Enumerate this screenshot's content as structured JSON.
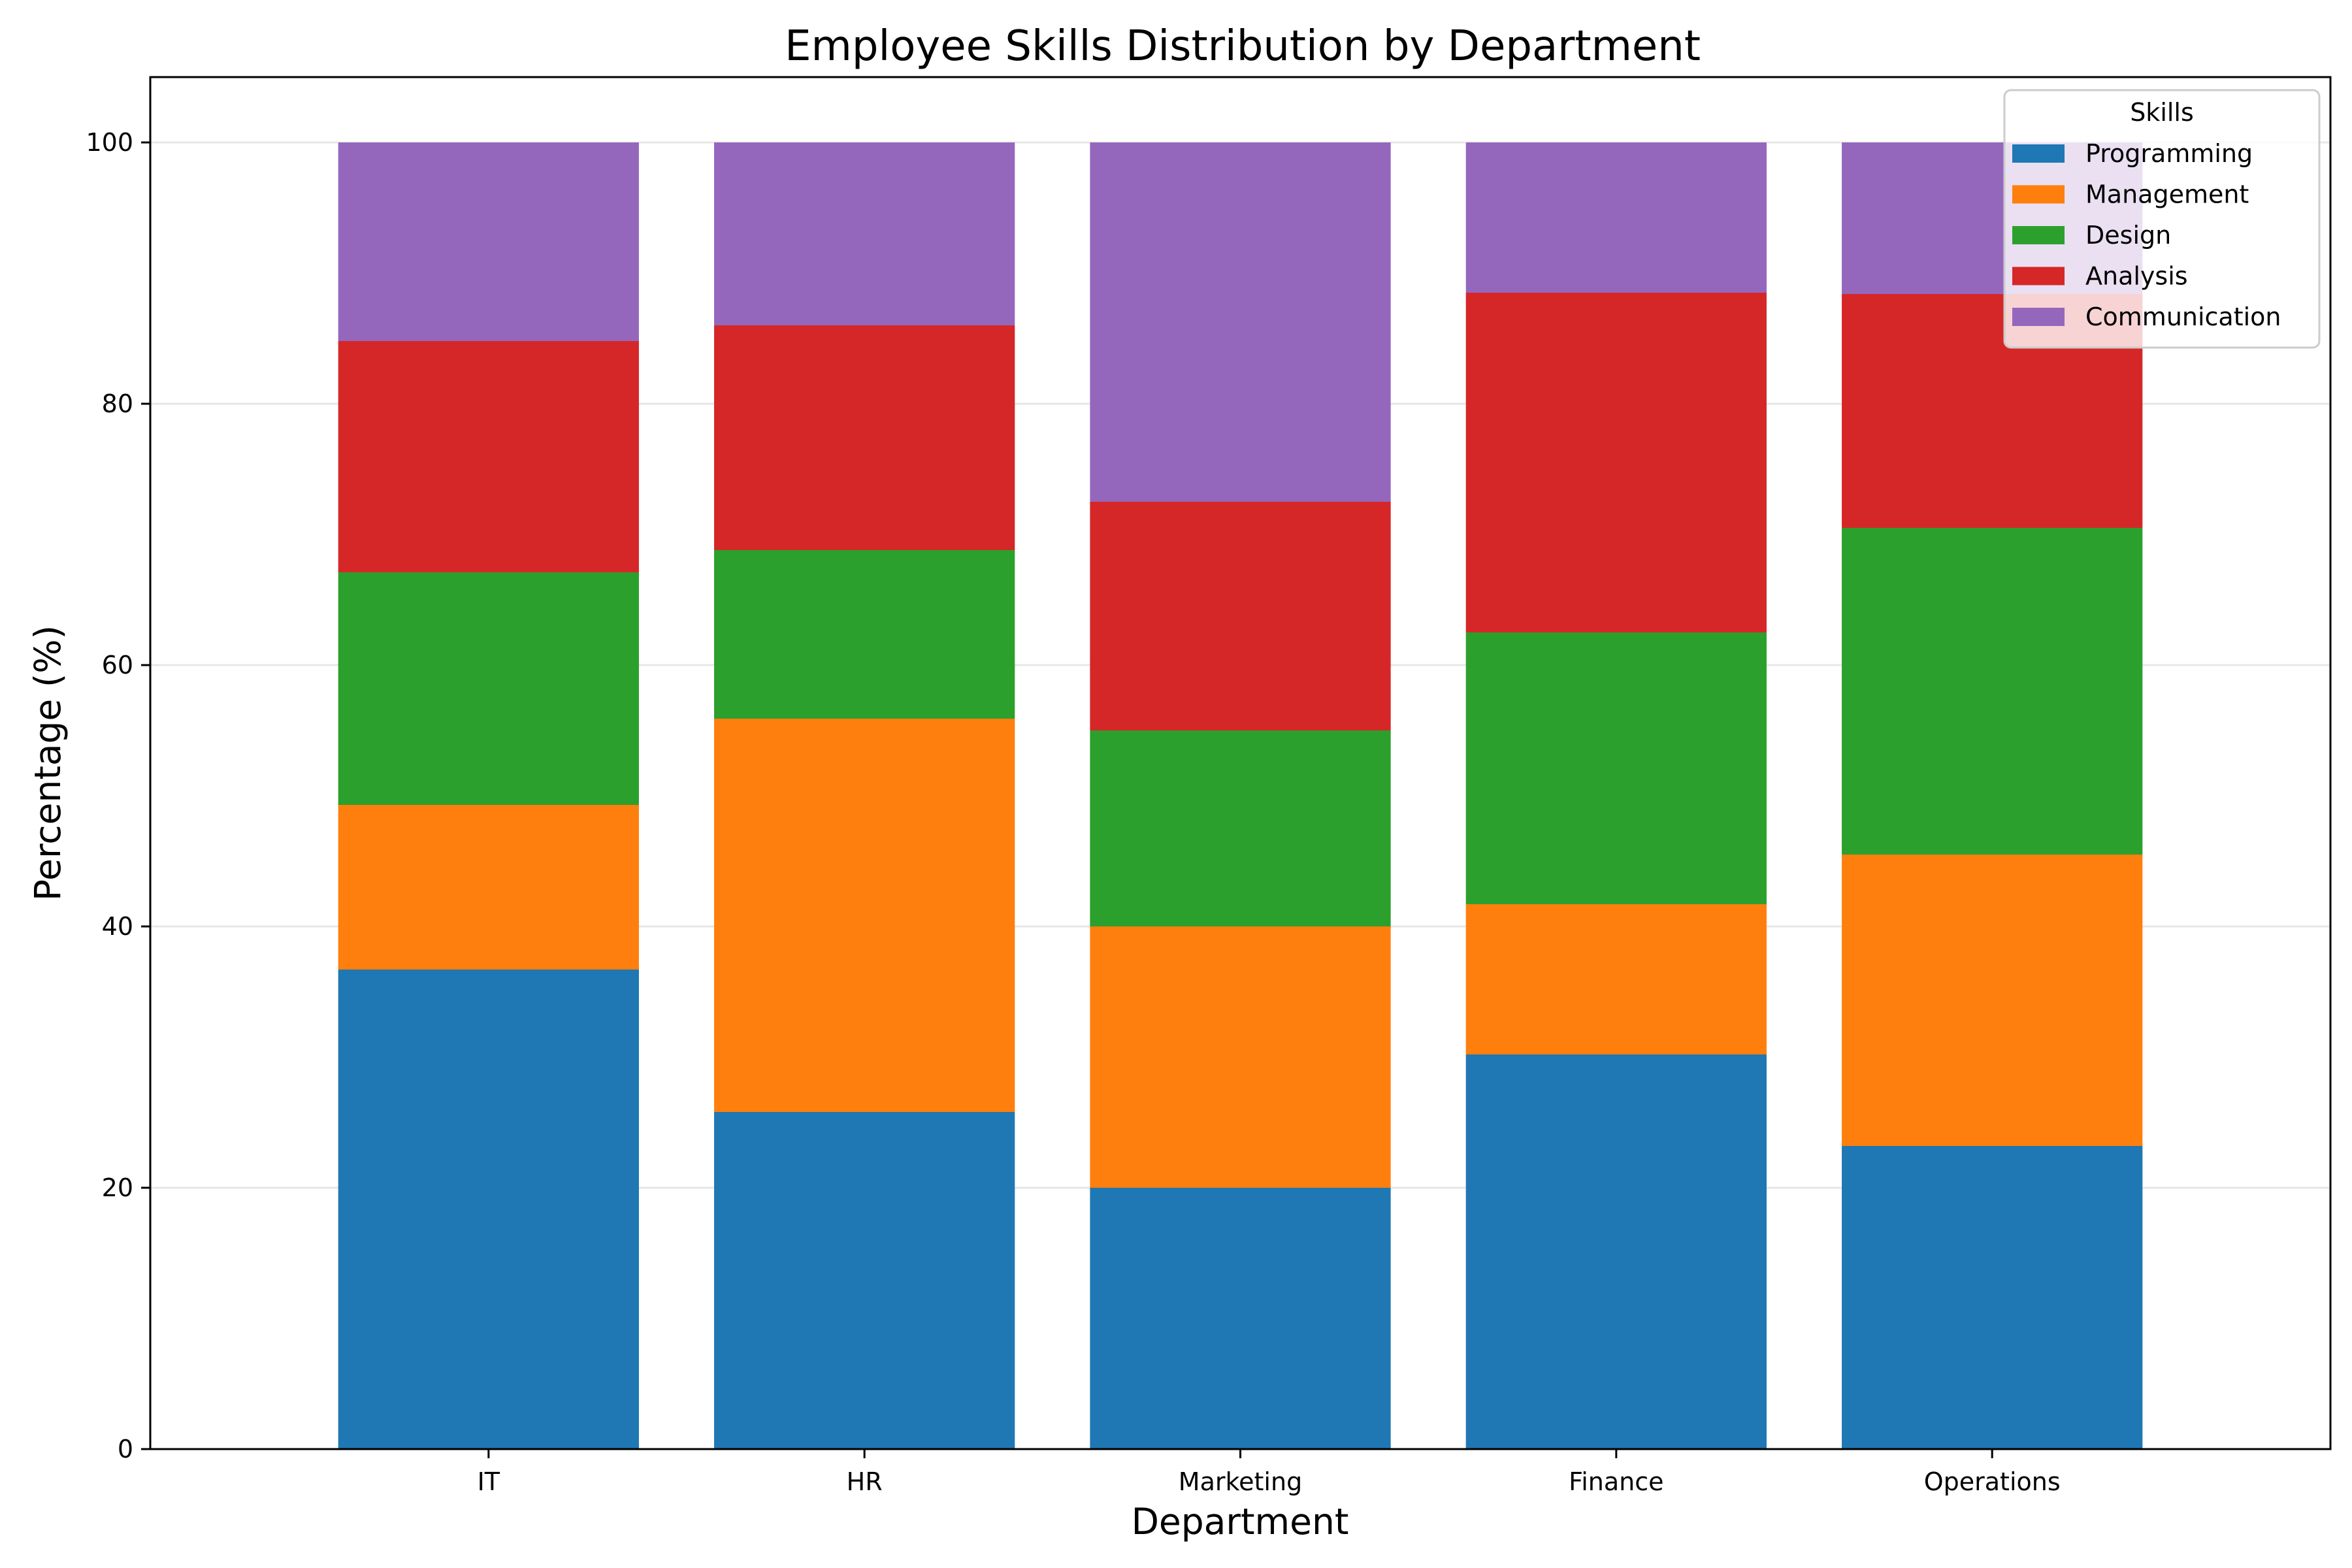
{
  "chart_data": {
    "type": "bar",
    "stacked": true,
    "title": "Employee Skills Distribution by Department",
    "xlabel": "Department",
    "ylabel": "Percentage (%)",
    "ylim": [
      0,
      105
    ],
    "yticks": [
      0,
      20,
      40,
      60,
      80,
      100
    ],
    "grid": "y",
    "categories": [
      "IT",
      "HR",
      "Marketing",
      "Finance",
      "Operations"
    ],
    "legend": {
      "title": "Skills",
      "placement": "top-right"
    },
    "series": [
      {
        "name": "Programming",
        "color": "#1f77b4",
        "values": [
          36.7,
          25.8,
          20.0,
          30.2,
          23.2
        ]
      },
      {
        "name": "Management",
        "color": "#ff7f0e",
        "values": [
          12.6,
          30.1,
          20.0,
          11.5,
          22.3
        ]
      },
      {
        "name": "Design",
        "color": "#2ca02c",
        "values": [
          17.8,
          12.9,
          15.0,
          20.8,
          25.0
        ]
      },
      {
        "name": "Analysis",
        "color": "#d62728",
        "values": [
          17.7,
          17.2,
          17.5,
          26.0,
          17.9
        ]
      },
      {
        "name": "Communication",
        "color": "#9467bd",
        "values": [
          15.2,
          14.0,
          27.5,
          11.5,
          11.6
        ]
      }
    ]
  }
}
